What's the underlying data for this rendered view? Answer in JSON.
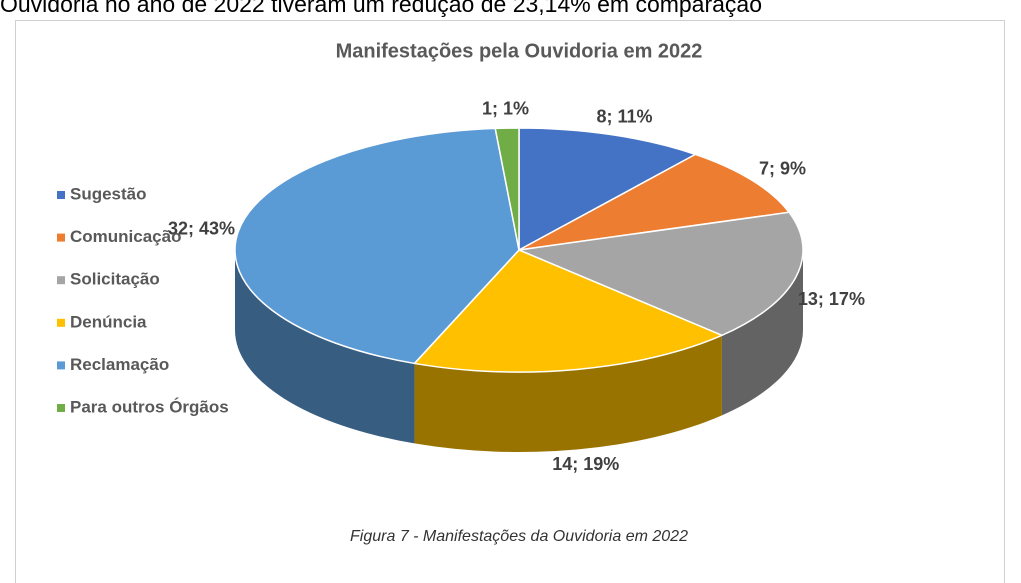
{
  "document": {
    "text_above": "Ouvidoria no ano de 2022 tiveram um redução de 23,14% em comparação",
    "caption": "Figura 7 - Manifestações da Ouvidoria em 2022"
  },
  "chart_data": {
    "type": "pie",
    "title": "Manifestações pela Ouvidoria em 2022",
    "categories": [
      "Sugestão",
      "Comunicação",
      "Solicitação",
      "Denúncia",
      "Reclamação",
      "Para outros Órgãos"
    ],
    "values": [
      8,
      7,
      13,
      14,
      32,
      1
    ],
    "value_labels": [
      "8; 11%",
      "7; 9%",
      "13; 17%",
      "14; 19%",
      "32; 43%",
      "1; 1%"
    ],
    "colors": [
      "#4472c4",
      "#ed7d31",
      "#a5a5a5",
      "#ffc000",
      "#5b9bd5",
      "#70ad47"
    ],
    "legend": "left"
  }
}
